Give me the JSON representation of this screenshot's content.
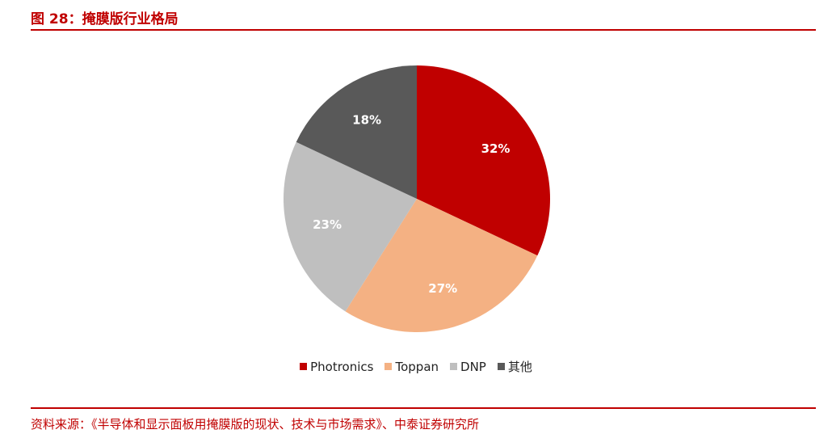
{
  "figure": {
    "title": "图 28：掩膜版行业格局"
  },
  "source": {
    "text": "资料来源：《半导体和显示面板用掩膜版的现状、技术与市场需求》、中泰证券研究所"
  },
  "chart_data": {
    "type": "pie",
    "categories": [
      "Photronics",
      "Toppan",
      "DNP",
      "其他"
    ],
    "values": [
      32,
      27,
      23,
      18
    ],
    "labels": [
      "32%",
      "27%",
      "23%",
      "18%"
    ],
    "colors": [
      "#c00000",
      "#f4b183",
      "#bfbfbf",
      "#595959"
    ],
    "legend_position": "bottom"
  }
}
